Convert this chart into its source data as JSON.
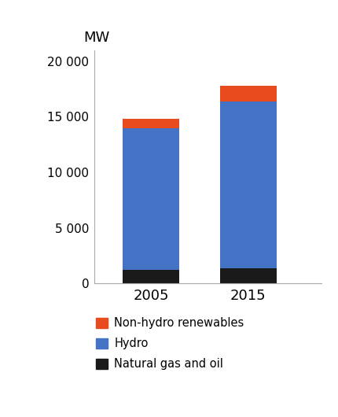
{
  "years": [
    "2005",
    "2015"
  ],
  "natural_gas_oil": [
    1200,
    1400
  ],
  "hydro": [
    12800,
    15000
  ],
  "non_hydro_renewables": [
    800,
    1400
  ],
  "colors": {
    "natural_gas_oil": "#1a1a1a",
    "hydro": "#4472c4",
    "non_hydro_renewables": "#e84c1e"
  },
  "ylabel": "MW",
  "yticks": [
    0,
    5000,
    10000,
    15000,
    20000
  ],
  "ytick_labels": [
    "0",
    "5 000",
    "10 000",
    "15 000",
    "20 000"
  ],
  "ylim": [
    0,
    21000
  ],
  "bar_width": 0.35,
  "background_color": "#ffffff",
  "legend_labels": [
    "Non-hydro renewables",
    "Hydro",
    "Natural gas and oil"
  ],
  "legend_colors": [
    "#e84c1e",
    "#4472c4",
    "#1a1a1a"
  ],
  "bar_positions": [
    0,
    1
  ],
  "bar_spacing": 0.6
}
